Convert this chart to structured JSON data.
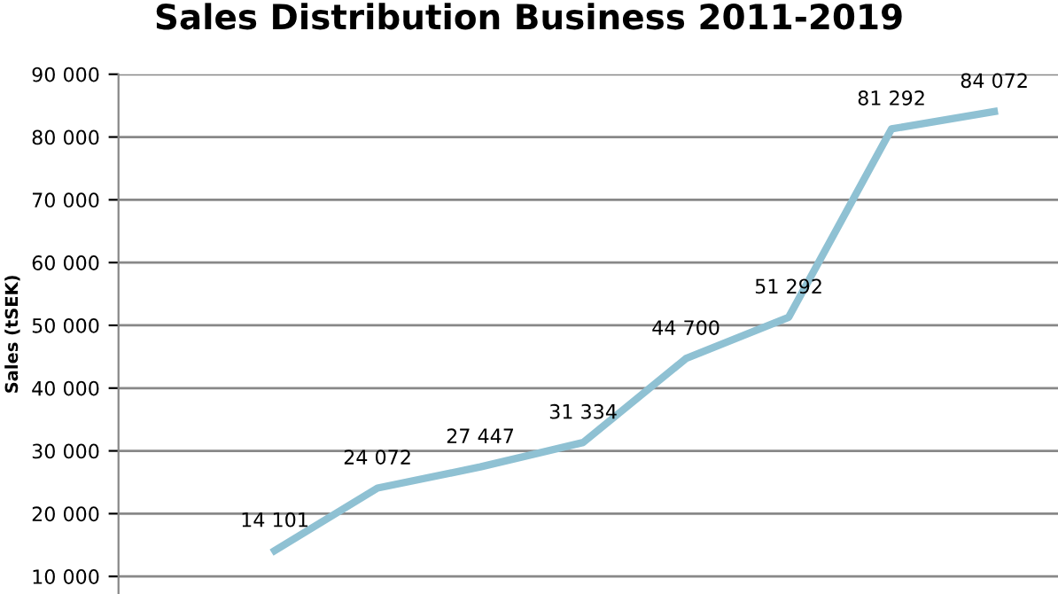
{
  "chart_data": {
    "type": "line",
    "title": "Sales Distribution Business 2011-2019",
    "ylabel": "Sales (tSEK)",
    "categories": [
      null,
      null,
      null,
      null,
      null,
      null,
      null,
      null,
      null
    ],
    "series": [
      {
        "color": "#8fc1d3",
        "values": [
          null,
          14101,
          24072,
          27447,
          31334,
          44700,
          51292,
          81292,
          84072
        ]
      }
    ],
    "value_labels": [
      null,
      "14 101",
      "24 072",
      "27 447",
      "31 334",
      "44 700",
      "51 292",
      "81 292",
      "84 072"
    ],
    "ylim": [
      7200,
      90000
    ],
    "yticks": [
      {
        "value": 10000,
        "label": "10 000"
      },
      {
        "value": 20000,
        "label": "20 000"
      },
      {
        "value": 30000,
        "label": "30 000"
      },
      {
        "value": 40000,
        "label": "40 000"
      },
      {
        "value": 50000,
        "label": "50 000"
      },
      {
        "value": 60000,
        "label": "60 000"
      },
      {
        "value": 70000,
        "label": "70 000"
      },
      {
        "value": 80000,
        "label": "80 000"
      },
      {
        "value": 90000,
        "label": "90 000"
      }
    ],
    "grid": "y",
    "tick_labels": "y",
    "legend": false,
    "marker": "none",
    "line_style": "solid"
  }
}
